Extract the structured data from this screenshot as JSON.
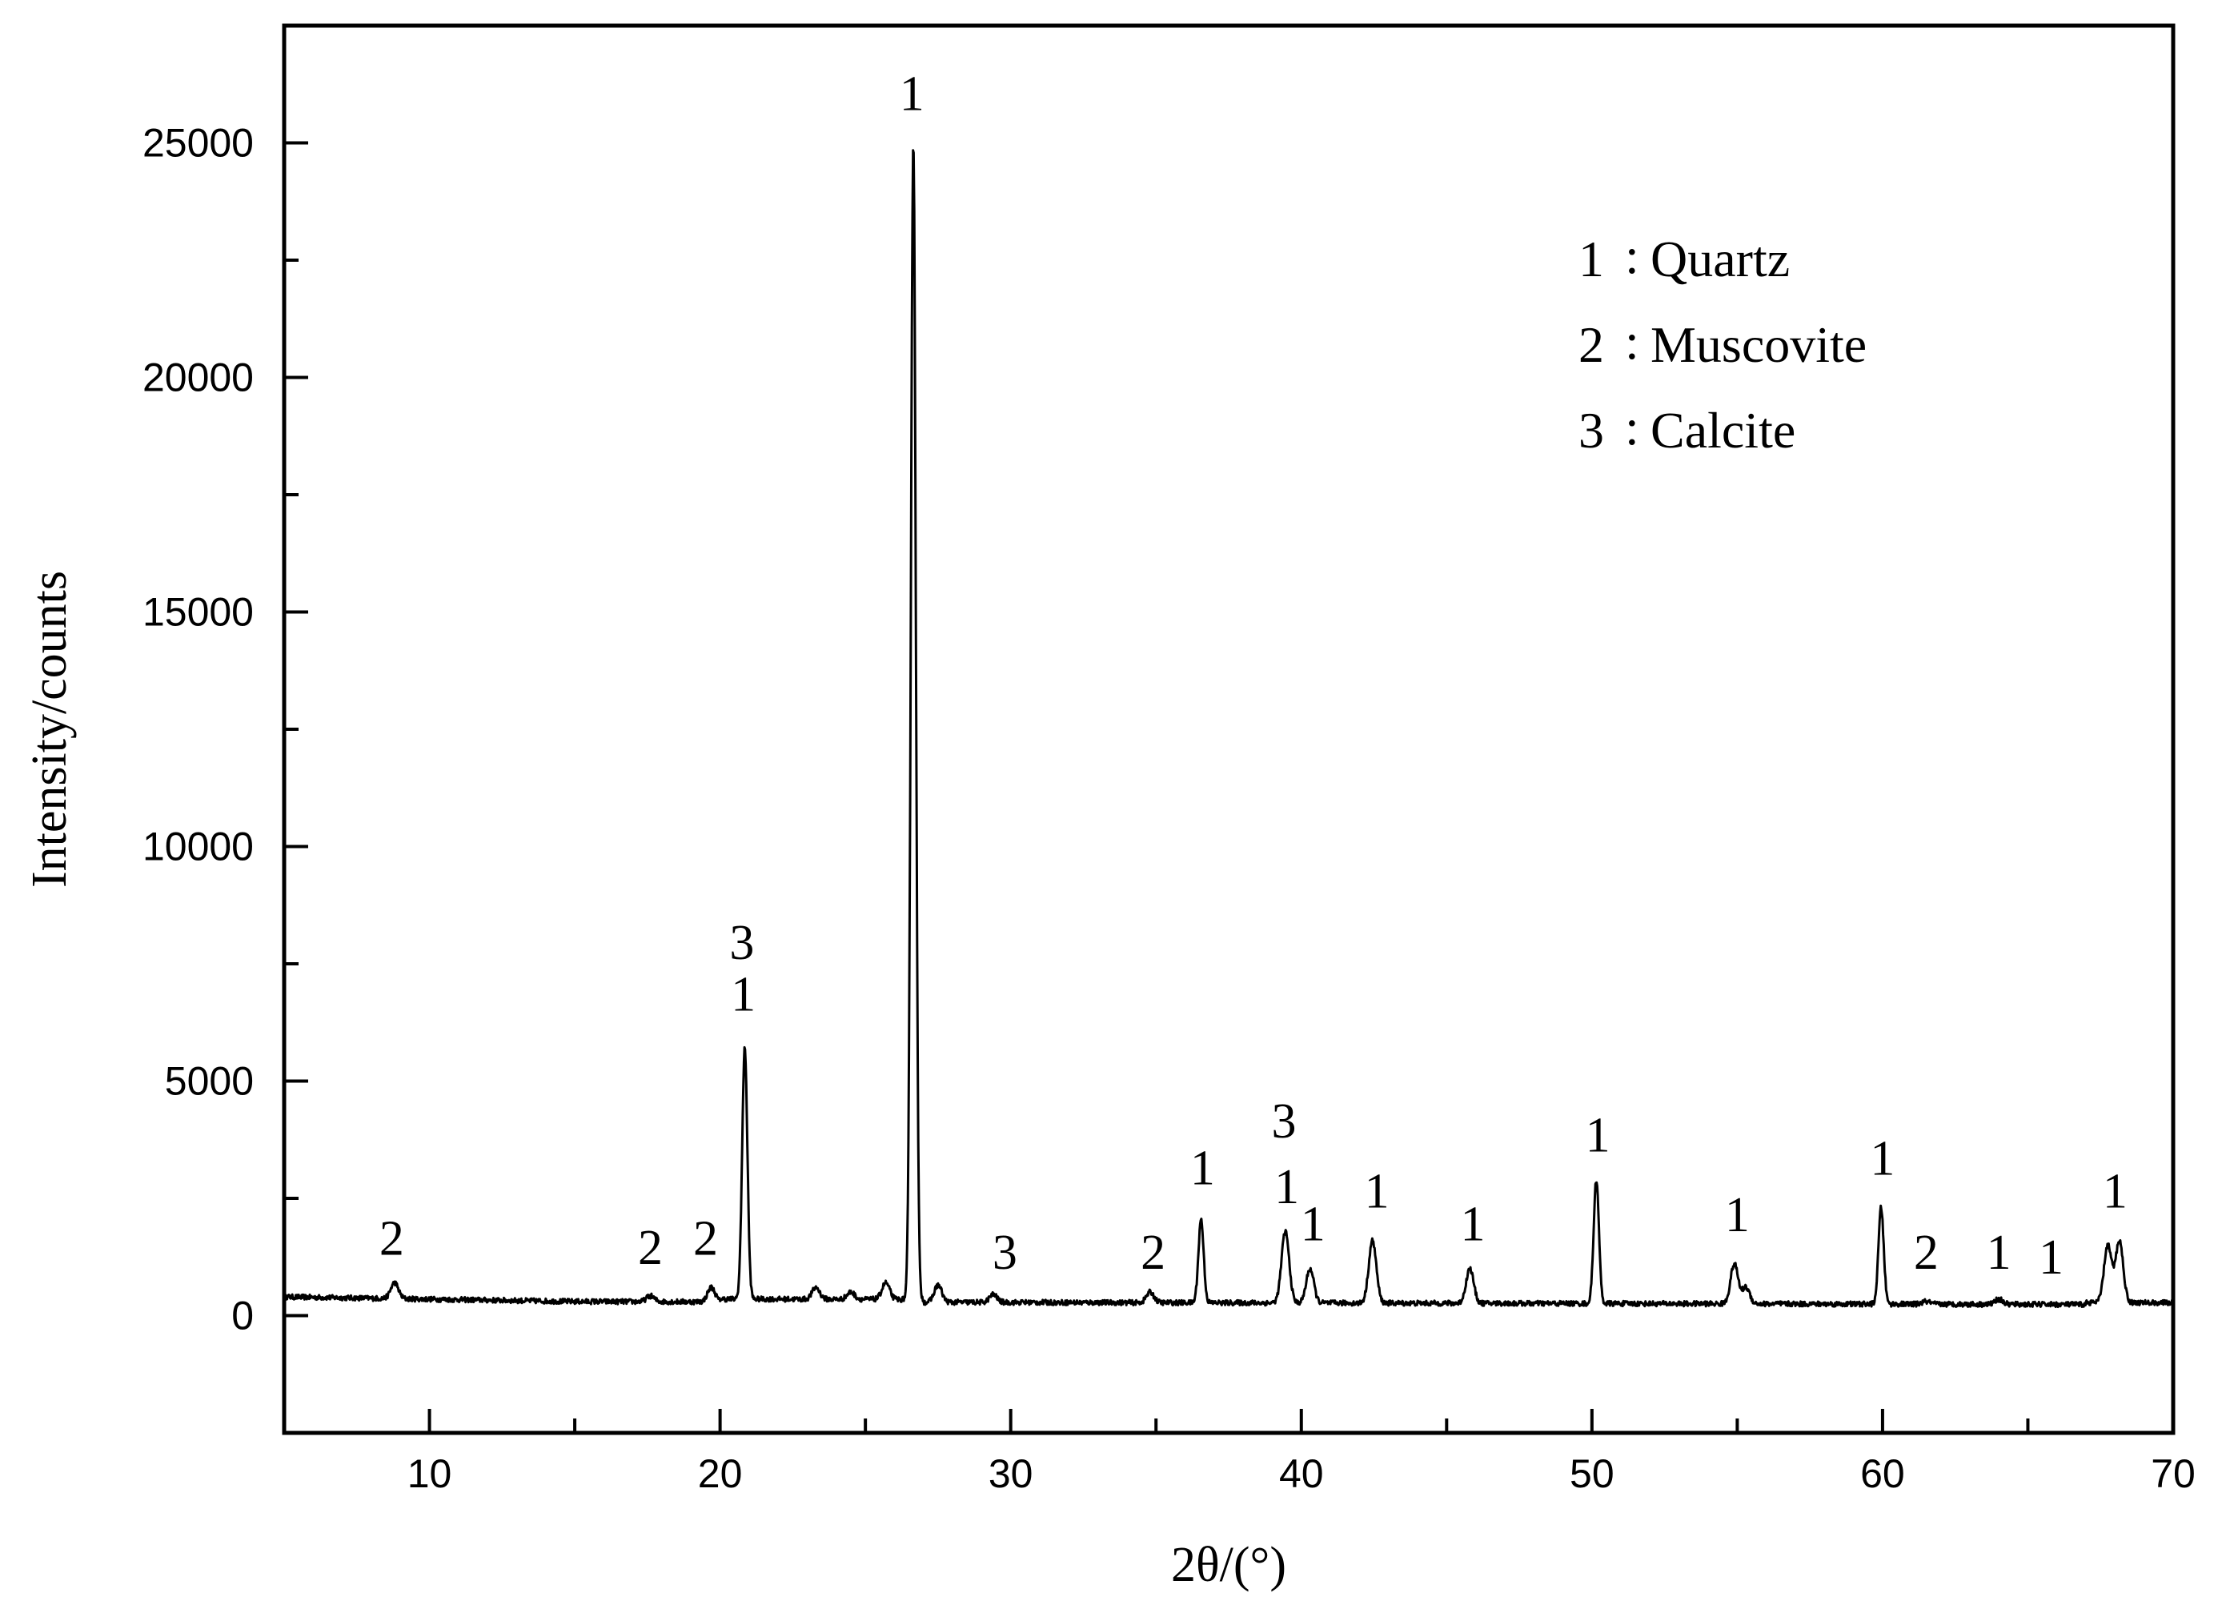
{
  "chart_data": {
    "type": "line",
    "title": "",
    "xlabel": "2θ/(°)",
    "ylabel": "Intensity/counts",
    "xlim": [
      5,
      70
    ],
    "ylim": [
      -2500,
      27500
    ],
    "x_ticks": [
      10,
      20,
      30,
      40,
      50,
      60,
      70
    ],
    "x_tick_labels": [
      "10",
      "20",
      "30",
      "40",
      "50",
      "60",
      "70"
    ],
    "y_ticks": [
      0,
      5000,
      10000,
      15000,
      20000,
      25000
    ],
    "y_tick_labels": [
      "0",
      "5000",
      "10000",
      "15000",
      "20000",
      "25000"
    ],
    "grid": false,
    "legend": {
      "position": "top-right",
      "entries": [
        {
          "num": "1",
          "sep": ":",
          "name": "Quartz"
        },
        {
          "num": "2",
          "sep": ":",
          "name": "Muscovite"
        },
        {
          "num": "3",
          "sep": ":",
          "name": "Calcite"
        }
      ]
    },
    "series": [
      {
        "peaks": [
          {
            "x": 8.8,
            "y": 700
          },
          {
            "x": 17.6,
            "y": 420
          },
          {
            "x": 19.7,
            "y": 600
          },
          {
            "x": 20.85,
            "y": 5700
          },
          {
            "x": 23.3,
            "y": 600
          },
          {
            "x": 24.5,
            "y": 500
          },
          {
            "x": 25.7,
            "y": 700
          },
          {
            "x": 26.65,
            "y": 25000
          },
          {
            "x": 27.5,
            "y": 650
          },
          {
            "x": 29.4,
            "y": 450
          },
          {
            "x": 34.8,
            "y": 500
          },
          {
            "x": 36.55,
            "y": 2050
          },
          {
            "x": 39.45,
            "y": 1800
          },
          {
            "x": 40.3,
            "y": 1000
          },
          {
            "x": 42.45,
            "y": 1600
          },
          {
            "x": 45.8,
            "y": 1000
          },
          {
            "x": 50.15,
            "y": 2900
          },
          {
            "x": 54.9,
            "y": 1100
          },
          {
            "x": 55.3,
            "y": 600
          },
          {
            "x": 59.95,
            "y": 2300
          },
          {
            "x": 61.5,
            "y": 300
          },
          {
            "x": 64.0,
            "y": 350
          },
          {
            "x": 65.8,
            "y": 200
          },
          {
            "x": 67.75,
            "y": 1500
          },
          {
            "x": 68.15,
            "y": 1600
          }
        ]
      }
    ],
    "annotations": [
      {
        "text": "2",
        "x": 8.7,
        "y": 1300
      },
      {
        "text": "2",
        "x": 17.6,
        "y": 1100
      },
      {
        "text": "2",
        "x": 19.5,
        "y": 1300
      },
      {
        "text": "1",
        "x": 20.8,
        "y": 6500
      },
      {
        "text": "3",
        "x": 20.75,
        "y": 7600
      },
      {
        "text": "1",
        "x": 26.6,
        "y": 25700
      },
      {
        "text": "3",
        "x": 29.8,
        "y": 1000
      },
      {
        "text": "2",
        "x": 34.9,
        "y": 1000
      },
      {
        "text": "1",
        "x": 36.6,
        "y": 2800
      },
      {
        "text": "1",
        "x": 39.5,
        "y": 2400
      },
      {
        "text": "3",
        "x": 39.4,
        "y": 3800
      },
      {
        "text": "1",
        "x": 40.4,
        "y": 1600
      },
      {
        "text": "1",
        "x": 42.6,
        "y": 2300
      },
      {
        "text": "1",
        "x": 45.9,
        "y": 1600
      },
      {
        "text": "1",
        "x": 50.2,
        "y": 3500
      },
      {
        "text": "1",
        "x": 55.0,
        "y": 1800
      },
      {
        "text": "1",
        "x": 60.0,
        "y": 3000
      },
      {
        "text": "2",
        "x": 61.5,
        "y": 1000
      },
      {
        "text": "1",
        "x": 64.0,
        "y": 1000
      },
      {
        "text": "1",
        "x": 65.8,
        "y": 900
      },
      {
        "text": "1",
        "x": 68.0,
        "y": 2300
      }
    ]
  }
}
